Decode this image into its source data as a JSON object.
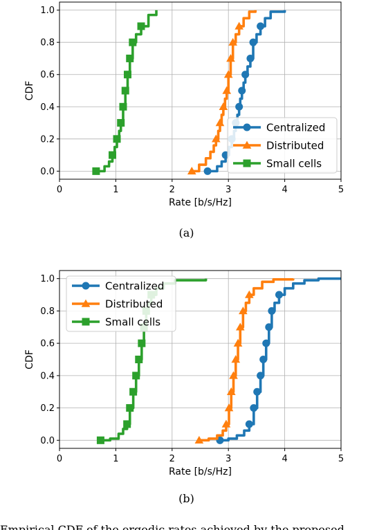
{
  "caption": "Empirical CDF of the ergodic rates achieved by the proposed",
  "chart_data": [
    {
      "type": "line",
      "subfigure_label": "(a)",
      "xlabel": "Rate [b/s/Hz]",
      "ylabel": "CDF",
      "xlim": [
        0,
        5
      ],
      "ylim": [
        0,
        1
      ],
      "xticks": [
        "0",
        "1",
        "2",
        "3",
        "4",
        "5"
      ],
      "yticks": [
        "0.0",
        "0.2",
        "0.4",
        "0.6",
        "0.8",
        "1.0"
      ],
      "grid": true,
      "legend": "lower-right",
      "series": [
        {
          "name": "Centralized",
          "color": "#1f77b4",
          "marker": "circle",
          "x": [
            2.63,
            2.8,
            2.88,
            2.95,
            3.01,
            3.06,
            3.1,
            3.13,
            3.16,
            3.19,
            3.21,
            3.24,
            3.27,
            3.3,
            3.34,
            3.39,
            3.44,
            3.5,
            3.57,
            3.65,
            3.75,
            4.0
          ],
          "y": [
            0.0,
            0.03,
            0.06,
            0.1,
            0.15,
            0.2,
            0.25,
            0.3,
            0.35,
            0.4,
            0.45,
            0.5,
            0.55,
            0.6,
            0.65,
            0.7,
            0.8,
            0.85,
            0.9,
            0.95,
            0.99,
            1.0
          ]
        },
        {
          "name": "Distributed",
          "color": "#ff7f0e",
          "marker": "triangle",
          "x": [
            2.35,
            2.48,
            2.6,
            2.68,
            2.74,
            2.78,
            2.82,
            2.85,
            2.88,
            2.91,
            2.94,
            2.97,
            3.0,
            3.04,
            3.08,
            3.13,
            3.19,
            3.27,
            3.37,
            3.48
          ],
          "y": [
            0.0,
            0.04,
            0.08,
            0.12,
            0.16,
            0.2,
            0.25,
            0.3,
            0.35,
            0.4,
            0.45,
            0.5,
            0.6,
            0.7,
            0.8,
            0.85,
            0.9,
            0.95,
            0.99,
            1.0
          ]
        },
        {
          "name": "Small cells",
          "color": "#2ca02c",
          "marker": "square",
          "x": [
            0.65,
            0.8,
            0.88,
            0.94,
            0.98,
            1.02,
            1.06,
            1.09,
            1.13,
            1.17,
            1.21,
            1.25,
            1.3,
            1.36,
            1.45,
            1.58,
            1.72
          ],
          "y": [
            0.0,
            0.03,
            0.06,
            0.1,
            0.15,
            0.2,
            0.25,
            0.3,
            0.4,
            0.5,
            0.6,
            0.7,
            0.8,
            0.85,
            0.9,
            0.97,
            1.0
          ]
        }
      ]
    },
    {
      "type": "line",
      "subfigure_label": "(b)",
      "xlabel": "Rate [b/s/Hz]",
      "ylabel": "CDF",
      "xlim": [
        0,
        5
      ],
      "ylim": [
        0,
        1
      ],
      "xticks": [
        "0",
        "1",
        "2",
        "3",
        "4",
        "5"
      ],
      "yticks": [
        "0.0",
        "0.2",
        "0.4",
        "0.6",
        "0.8",
        "1.0"
      ],
      "grid": true,
      "legend": "upper-left",
      "series": [
        {
          "name": "Centralized",
          "color": "#1f77b4",
          "marker": "circle",
          "x": [
            2.85,
            3.0,
            3.15,
            3.28,
            3.37,
            3.45,
            3.51,
            3.57,
            3.62,
            3.67,
            3.72,
            3.77,
            3.82,
            3.9,
            4.0,
            4.15,
            4.35,
            4.6,
            5.0
          ],
          "y": [
            0.0,
            0.01,
            0.03,
            0.06,
            0.1,
            0.2,
            0.3,
            0.4,
            0.5,
            0.6,
            0.7,
            0.8,
            0.85,
            0.9,
            0.94,
            0.97,
            0.99,
            1.0,
            1.0
          ]
        },
        {
          "name": "Distributed",
          "color": "#ff7f0e",
          "marker": "triangle",
          "x": [
            2.48,
            2.65,
            2.8,
            2.9,
            2.96,
            3.01,
            3.05,
            3.09,
            3.13,
            3.17,
            3.21,
            3.26,
            3.31,
            3.37,
            3.45,
            3.6,
            3.8,
            4.15
          ],
          "y": [
            0.0,
            0.01,
            0.03,
            0.06,
            0.1,
            0.2,
            0.3,
            0.4,
            0.5,
            0.6,
            0.7,
            0.8,
            0.85,
            0.9,
            0.94,
            0.98,
            0.995,
            1.0
          ]
        },
        {
          "name": "Small cells",
          "color": "#2ca02c",
          "marker": "square",
          "x": [
            0.73,
            0.9,
            1.05,
            1.13,
            1.2,
            1.25,
            1.31,
            1.36,
            1.41,
            1.46,
            1.5,
            1.54,
            1.58,
            1.63,
            1.72,
            1.85,
            2.05,
            2.6
          ],
          "y": [
            0.0,
            0.01,
            0.04,
            0.07,
            0.1,
            0.2,
            0.3,
            0.4,
            0.5,
            0.6,
            0.7,
            0.8,
            0.85,
            0.9,
            0.94,
            0.97,
            0.99,
            1.0
          ]
        }
      ]
    }
  ]
}
